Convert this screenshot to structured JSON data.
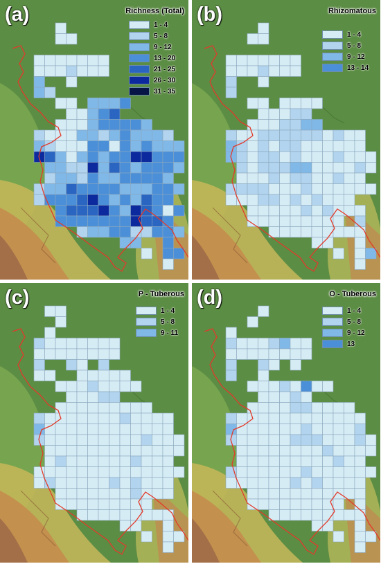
{
  "panels": [
    {
      "letter": "(a)",
      "title": "Richness (Total)",
      "legend": [
        {
          "label": "1 - 4",
          "color": "#d6ecf5"
        },
        {
          "label": "5 - 8",
          "color": "#b2d4ee"
        },
        {
          "label": "9 - 12",
          "color": "#80b8e8"
        },
        {
          "label": "13 - 20",
          "color": "#4b8fd8"
        },
        {
          "label": "21 - 25",
          "color": "#2a65c2"
        },
        {
          "label": "26 - 30",
          "color": "#0c2a9e"
        },
        {
          "label": "31 - 35",
          "color": "#061545"
        }
      ]
    },
    {
      "letter": "(b)",
      "title": "Rhizomatous",
      "legend": [
        {
          "label": "1 - 4",
          "color": "#d6ecf5"
        },
        {
          "label": "5 - 8",
          "color": "#b2d4ee"
        },
        {
          "label": "9 - 12",
          "color": "#80b8e8"
        },
        {
          "label": "13 - 14",
          "color": "#4b8fd8"
        }
      ]
    },
    {
      "letter": "(c)",
      "title": "P - Tuberous",
      "legend": [
        {
          "label": "1 - 4",
          "color": "#d6ecf5"
        },
        {
          "label": "5 - 8",
          "color": "#b2d4ee"
        },
        {
          "label": "9 - 11",
          "color": "#80b8e8"
        }
      ]
    },
    {
      "letter": "(d)",
      "title": "O - Tuberous",
      "legend": [
        {
          "label": "1 - 4",
          "color": "#d6ecf5"
        },
        {
          "label": "5 - 8",
          "color": "#b2d4ee"
        },
        {
          "label": "9 - 12",
          "color": "#80b8e8"
        },
        {
          "label": "13",
          "color": "#4b8fd8"
        }
      ]
    }
  ],
  "grids": {
    "a": [
      ".......................",
      ".......................",
      "....1..................",
      "....11.................",
      "...................",
      "..1111111.........",
      "..1112111.........",
      "..3..1...........",
      "..32.............",
      "....11.3334.......",
      ".....11345.......",
      "....111344443....",
      "..2111332343332..",
      "..32111441434333.",
      "..65313434466444..",
      "...3322635434443..",
      "...233243344443...",
      "..23354444333443..",
      "..2444564343544..",
      "....455564365414...",
      "....44444446554....",
      "......2334422443...",
      "..........33..4.....",
      "............1.444...",
      "..............1......"
    ],
    "b": [
      ".......................",
      ".......................",
      ".....1.................",
      "....11.................",
      "...................",
      "..1111111.........",
      "..1112111.........",
      "..2..1...........",
      "..2..............",
      "....11.1111.......",
      ".....11122.......",
      "....1112233.....",
      "..2112222221211..",
      "..3212122111111.",
      "..32122121112111..",
      "...2122233111121..",
      "...111212211211...",
      "..22221112111111..",
      "..111221212111..",
      "....11111212111...",
      "....111111111.2..",
      "......111111111....",
      "..........11..1....",
      "............1.13....",
      "..............1......"
    ],
    "c": [
      ".......................",
      ".......................",
      "...11..................",
      "....1..................",
      "...1.................",
      "..21111111.........",
      "..11111111.........",
      "..2..21.2.........",
      "..11..11111......",
      "....11121111.......",
      ".....11122.......",
      "....111111111.....",
      "..2111111121111..",
      "..3111111111111.",
      "..21111111112111..",
      "...1111111111111..",
      "...121111112111...",
      "..11111111111111..",
      "..1211111212111..",
      "....11111112111...",
      "....111111111....",
      "......111111111....",
      "..........11..1....",
      "............1.11....",
      "..............1......"
    ],
    "d": [
      ".......................",
      ".......................",
      ".....1.................",
      "....1..................",
      "..1..................",
      "..21112311.........",
      "..11111111.........",
      "..2..21.1.........",
      "..2..1...........",
      "....11121411.......",
      ".....11121.......",
      "....1111221111...",
      "..2111111111111..",
      "..3111111211112.",
      "..21111122211121..",
      "...1111111121111..",
      "...111111111211...",
      "..21111112111111..",
      "..1111112121111..",
      "....11111111111...",
      "....111111111.1..",
      "......111111111....",
      "..........11..1....",
      "............1.11....",
      "..............1......"
    ]
  }
}
